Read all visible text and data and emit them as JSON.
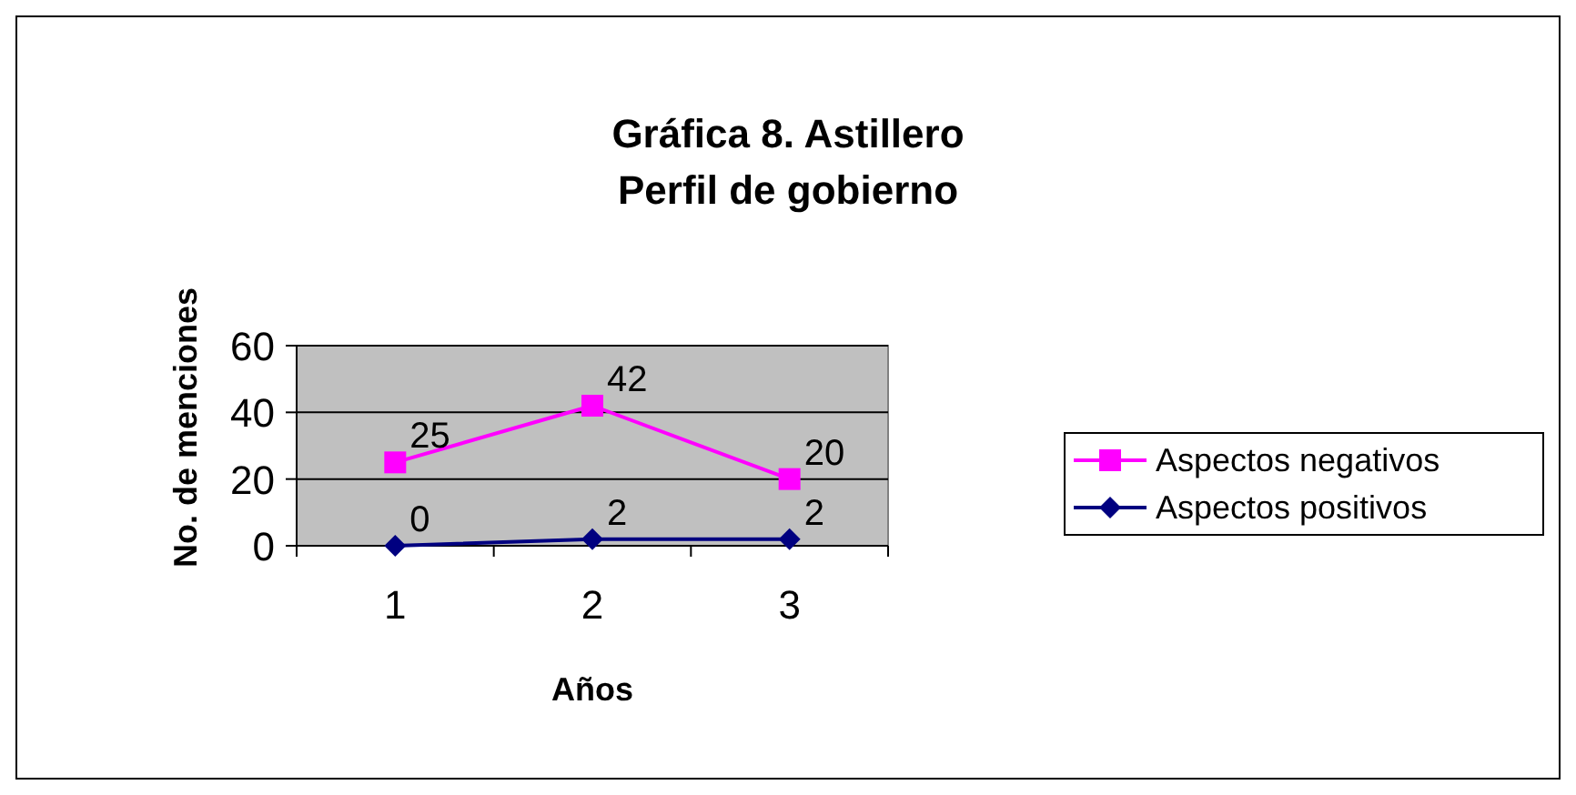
{
  "chart_data": {
    "type": "line",
    "title": "Gráfica 8. Astillero\nPerfil de gobierno",
    "xlabel": "Años",
    "ylabel": "No. de menciones",
    "categories": [
      "1",
      "2",
      "3"
    ],
    "series": [
      {
        "name": "Aspectos negativos",
        "color": "#ff00ff",
        "marker": "square",
        "values": [
          25,
          42,
          20
        ]
      },
      {
        "name": "Aspectos positivos",
        "color": "#000080",
        "marker": "diamond",
        "values": [
          0,
          2,
          2
        ]
      }
    ],
    "ylim": [
      0,
      60
    ],
    "yticks": [
      0,
      20,
      40,
      60
    ],
    "grid": "y",
    "legend": "right",
    "data_labels": true
  }
}
